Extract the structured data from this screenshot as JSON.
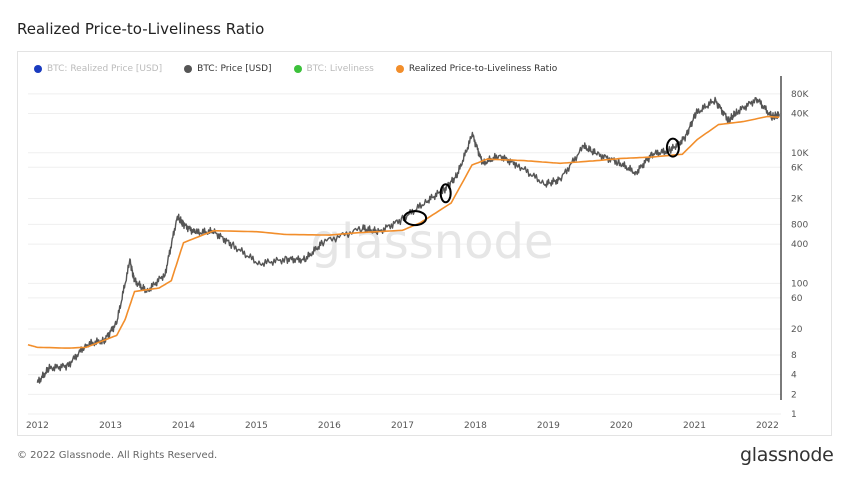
{
  "page": {
    "title": "Realized Price-to-Liveliness Ratio",
    "copyright": "© 2022 Glassnode. All Rights Reserved.",
    "logo": "glassnode",
    "watermark": "glassnode"
  },
  "chart_data": {
    "type": "line",
    "title": "Realized Price-to-Liveliness Ratio",
    "xlabel": "",
    "ylabel": "",
    "y_scale": "log",
    "ylim": [
      1,
      150000
    ],
    "xlim": [
      "2011-11-15",
      "2022-03-10"
    ],
    "grid": true,
    "legend_position": "top-left",
    "x_tick_labels": [
      "2012",
      "2013",
      "2014",
      "2015",
      "2016",
      "2017",
      "2018",
      "2019",
      "2020",
      "2021",
      "2022"
    ],
    "x_tick_positions": [
      "2012-01-01",
      "2013-01-01",
      "2014-01-01",
      "2015-01-01",
      "2016-01-01",
      "2017-01-01",
      "2018-01-01",
      "2019-01-01",
      "2020-01-01",
      "2021-01-01",
      "2022-01-01"
    ],
    "y_tick_labels": [
      "1",
      "2",
      "4",
      "8",
      "20",
      "60",
      "100",
      "400",
      "800",
      "2K",
      "6K",
      "10K",
      "40K",
      "80K"
    ],
    "y_tick_values": [
      1,
      2,
      4,
      8,
      20,
      60,
      100,
      400,
      800,
      2000,
      6000,
      10000,
      40000,
      80000
    ],
    "legend": [
      {
        "name": "BTC: Realized Price [USD]",
        "color": "#1a3bbf",
        "visible": false
      },
      {
        "name": "BTC: Price [USD]",
        "color": "#555555",
        "visible": true
      },
      {
        "name": "BTC: Liveliness",
        "color": "#3cc13b",
        "visible": false
      },
      {
        "name": "Realized Price-to-Liveliness Ratio",
        "color": "#f28e2b",
        "visible": true
      }
    ],
    "series": [
      {
        "name": "BTC: Price [USD]",
        "color": "#555555",
        "points": [
          [
            "2012-01-01",
            3.0
          ],
          [
            "2012-03-01",
            5.0
          ],
          [
            "2012-06-01",
            5.5
          ],
          [
            "2012-09-01",
            11.5
          ],
          [
            "2012-12-01",
            13.5
          ],
          [
            "2013-02-01",
            25
          ],
          [
            "2013-04-08",
            220
          ],
          [
            "2013-05-01",
            110
          ],
          [
            "2013-07-01",
            75
          ],
          [
            "2013-10-01",
            140
          ],
          [
            "2013-12-01",
            1050
          ],
          [
            "2014-01-01",
            800
          ],
          [
            "2014-03-01",
            600
          ],
          [
            "2014-06-01",
            620
          ],
          [
            "2014-09-01",
            390
          ],
          [
            "2015-01-14",
            200
          ],
          [
            "2015-06-01",
            235
          ],
          [
            "2015-09-01",
            230
          ],
          [
            "2015-12-01",
            430
          ],
          [
            "2016-06-15",
            700
          ],
          [
            "2016-09-01",
            610
          ],
          [
            "2017-01-01",
            970
          ],
          [
            "2017-05-01",
            1800
          ],
          [
            "2017-08-01",
            2800
          ],
          [
            "2017-10-01",
            4500
          ],
          [
            "2017-12-17",
            19000
          ],
          [
            "2018-02-06",
            6900
          ],
          [
            "2018-05-01",
            9000
          ],
          [
            "2018-08-01",
            6500
          ],
          [
            "2018-12-15",
            3300
          ],
          [
            "2019-03-01",
            3900
          ],
          [
            "2019-06-26",
            12500
          ],
          [
            "2019-09-01",
            9600
          ],
          [
            "2019-12-15",
            7200
          ],
          [
            "2020-03-13",
            4900
          ],
          [
            "2020-06-01",
            9500
          ],
          [
            "2020-09-01",
            10800
          ],
          [
            "2020-11-15",
            17000
          ],
          [
            "2021-01-08",
            40000
          ],
          [
            "2021-04-14",
            64000
          ],
          [
            "2021-06-22",
            31000
          ],
          [
            "2021-08-01",
            42000
          ],
          [
            "2021-11-10",
            67000
          ],
          [
            "2022-01-24",
            35000
          ],
          [
            "2022-03-01",
            39000
          ]
        ]
      },
      {
        "name": "Realized Price-to-Liveliness Ratio",
        "color": "#f28e2b",
        "points": [
          [
            "2011-11-15",
            11.5
          ],
          [
            "2012-01-01",
            10.5
          ],
          [
            "2012-06-01",
            10.2
          ],
          [
            "2012-09-01",
            10.5
          ],
          [
            "2012-12-01",
            13.5
          ],
          [
            "2013-02-01",
            16
          ],
          [
            "2013-03-15",
            28
          ],
          [
            "2013-05-01",
            75
          ],
          [
            "2013-09-01",
            85
          ],
          [
            "2013-11-01",
            110
          ],
          [
            "2014-01-01",
            420
          ],
          [
            "2014-06-01",
            640
          ],
          [
            "2015-01-01",
            620
          ],
          [
            "2015-06-01",
            560
          ],
          [
            "2016-01-01",
            550
          ],
          [
            "2016-06-01",
            600
          ],
          [
            "2017-01-01",
            650
          ],
          [
            "2017-04-01",
            850
          ],
          [
            "2017-09-01",
            1700
          ],
          [
            "2017-12-15",
            6500
          ],
          [
            "2018-03-01",
            8000
          ],
          [
            "2018-09-01",
            7600
          ],
          [
            "2019-03-01",
            6900
          ],
          [
            "2019-09-01",
            7600
          ],
          [
            "2020-01-01",
            8200
          ],
          [
            "2020-06-01",
            8600
          ],
          [
            "2020-11-01",
            9500
          ],
          [
            "2021-01-15",
            16000
          ],
          [
            "2021-05-01",
            27000
          ],
          [
            "2021-09-01",
            30000
          ],
          [
            "2022-01-01",
            36000
          ],
          [
            "2022-03-01",
            35000
          ]
        ]
      }
    ],
    "annotations": [
      {
        "type": "ellipse",
        "date": "2017-03-05",
        "value": 1000
      },
      {
        "type": "ellipse",
        "date": "2017-08-05",
        "value": 2400
      },
      {
        "type": "ellipse",
        "date": "2020-09-15",
        "value": 12000
      }
    ]
  }
}
